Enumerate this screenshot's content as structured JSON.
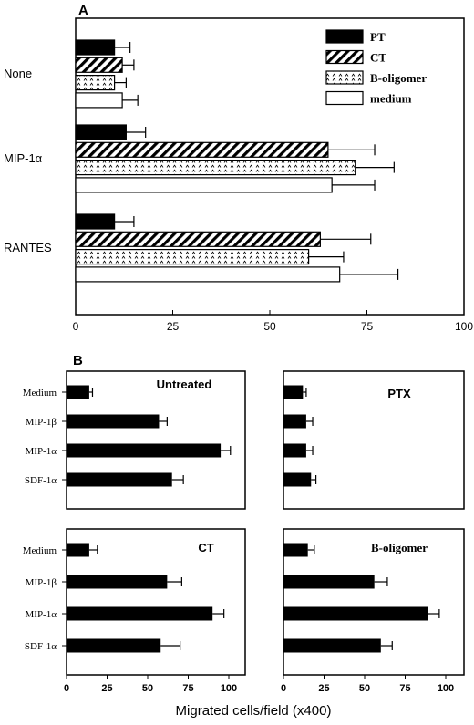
{
  "chart_data": [
    {
      "type": "bar",
      "orientation": "horizontal",
      "panel": "A",
      "categories": [
        "None",
        "MIP-1α",
        "RANTES"
      ],
      "series": [
        {
          "name": "PT",
          "values": [
            10,
            13,
            10
          ],
          "errors": [
            4,
            5,
            5
          ]
        },
        {
          "name": "CT",
          "values": [
            12,
            65,
            63
          ],
          "errors": [
            3,
            12,
            13
          ]
        },
        {
          "name": "B-oligomer",
          "values": [
            10,
            72,
            60
          ],
          "errors": [
            3,
            10,
            9
          ]
        },
        {
          "name": "medium",
          "values": [
            12,
            66,
            68
          ],
          "errors": [
            4,
            11,
            15
          ]
        }
      ],
      "xlim": [
        0,
        100
      ],
      "xticks": [
        0,
        25,
        50,
        75,
        100
      ],
      "legend": "top-right"
    },
    {
      "type": "bar",
      "orientation": "horizontal",
      "panel": "B",
      "title": "Untreated",
      "categories": [
        "Medium",
        "MIP-1β",
        "MIP-1α",
        "SDF-1α"
      ],
      "values": [
        14,
        57,
        95,
        65
      ],
      "errors": [
        2,
        5,
        6,
        7
      ],
      "xlim": [
        0,
        100
      ]
    },
    {
      "type": "bar",
      "orientation": "horizontal",
      "panel": "B",
      "title": "PTX",
      "categories": [
        "Medium",
        "MIP-1β",
        "MIP-1α",
        "SDF-1α"
      ],
      "values": [
        12,
        14,
        14,
        17
      ],
      "errors": [
        2,
        4,
        4,
        3
      ],
      "xlim": [
        0,
        100
      ]
    },
    {
      "type": "bar",
      "orientation": "horizontal",
      "panel": "B",
      "title": "CT",
      "categories": [
        "Medium",
        "MIP-1β",
        "MIP-1α",
        "SDF-1α"
      ],
      "values": [
        14,
        62,
        90,
        58
      ],
      "errors": [
        5,
        9,
        7,
        12
      ],
      "xlim": [
        0,
        100
      ],
      "xticks": [
        0,
        25,
        50,
        75,
        100
      ]
    },
    {
      "type": "bar",
      "orientation": "horizontal",
      "panel": "B",
      "title": "B-oligomer",
      "categories": [
        "Medium",
        "MIP-1β",
        "MIP-1α",
        "SDF-1α"
      ],
      "values": [
        15,
        56,
        89,
        60
      ],
      "errors": [
        4,
        8,
        7,
        7
      ],
      "xlim": [
        0,
        100
      ],
      "xticks": [
        0,
        25,
        50,
        75,
        100
      ]
    }
  ],
  "labels": {
    "panel_a": "A",
    "panel_b": "B",
    "xlabel_b": "Migrated cells/field (x400)"
  }
}
